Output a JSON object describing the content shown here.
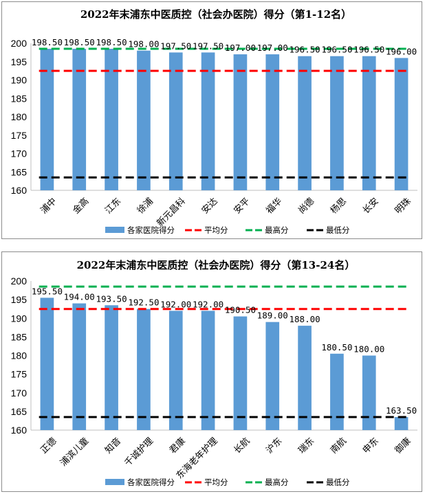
{
  "colors": {
    "bar": "#5b9bd5",
    "avg": "#ff0000",
    "max": "#00b050",
    "min": "#000000",
    "axis": "#bfbfbf",
    "grid": "#d9d9d9"
  },
  "legend": {
    "bar": "各家医院得分",
    "avg": "平均分",
    "max": "最高分",
    "min": "最低分"
  },
  "chart_data": [
    {
      "type": "bar",
      "title": "2022年末浦东中医质控（社会办医院）得分（第1-12名）",
      "ylim": [
        160,
        200
      ],
      "yticks": [
        160,
        165,
        170,
        175,
        180,
        185,
        190,
        195,
        200
      ],
      "categories": [
        "浦中",
        "金高",
        "江东",
        "徐浦",
        "新元昌科",
        "安达",
        "安平",
        "福华",
        "尚德",
        "杨思",
        "长安",
        "明珠"
      ],
      "values": [
        198.5,
        198.5,
        198.5,
        198.0,
        197.5,
        197.5,
        197.0,
        197.0,
        196.5,
        196.5,
        196.5,
        196.0
      ],
      "labels": [
        "198.50",
        "198.50",
        "198.50",
        "198.00",
        "197.50",
        "197.50",
        "197.00",
        "197.00",
        "196.50",
        "196.50",
        "196.50",
        "196.00"
      ],
      "average": 192.5,
      "max": 198.5,
      "min": 163.5
    },
    {
      "type": "bar",
      "title": "2022年末浦东中医质控（社会办医院）得分（第13-24名）",
      "ylim": [
        160,
        200
      ],
      "yticks": [
        160,
        165,
        170,
        175,
        180,
        185,
        190,
        195,
        200
      ],
      "categories": [
        "正德",
        "浦滨儿童",
        "知音",
        "千诚护理",
        "君康",
        "东海老年护理",
        "长航",
        "沪东",
        "瑞东",
        "南航",
        "申东",
        "御康"
      ],
      "values": [
        195.5,
        194.0,
        193.5,
        192.5,
        192.0,
        192.0,
        190.5,
        189.0,
        188.0,
        180.5,
        180.0,
        163.5
      ],
      "labels": [
        "195.50",
        "194.00",
        "193.50",
        "192.50",
        "192.00",
        "192.00",
        "190.50",
        "189.00",
        "188.00",
        "180.50",
        "180.00",
        "163.50"
      ],
      "average": 192.5,
      "max": 198.5,
      "min": 163.5
    }
  ]
}
